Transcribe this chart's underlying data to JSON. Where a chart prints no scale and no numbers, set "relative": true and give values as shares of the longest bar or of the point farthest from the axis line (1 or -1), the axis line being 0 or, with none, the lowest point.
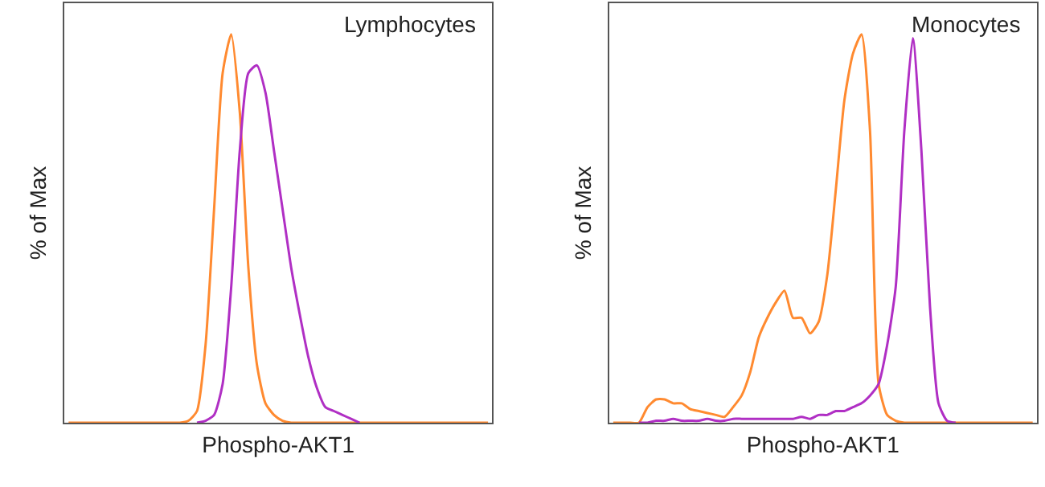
{
  "chart_data": [
    {
      "type": "line",
      "title": "Lymphocytes",
      "ylabel": "% of Max",
      "xlabel": "Phospho-AKT1",
      "relative": true,
      "tick_labels": false,
      "marker": "none",
      "line_style": "solid",
      "categories": [
        null,
        null,
        null,
        null,
        null,
        null,
        null,
        null,
        null,
        null,
        null,
        null,
        null,
        null,
        null,
        null,
        null,
        null,
        null,
        null,
        null,
        null,
        null,
        null,
        null,
        null,
        null,
        null,
        null,
        null,
        null,
        null,
        null,
        null,
        null,
        null,
        null,
        null,
        null,
        null,
        null,
        null,
        null,
        null,
        null,
        null,
        null,
        null,
        null,
        null
      ],
      "series": [
        {
          "color": "#ff8a30",
          "values": [
            0,
            0,
            0,
            0,
            0,
            0,
            0,
            0,
            0,
            0,
            0,
            0,
            0,
            0,
            0.005,
            0.03,
            0.2,
            0.55,
            0.9,
            1.0,
            0.8,
            0.4,
            0.15,
            0.05,
            0.02,
            0.005,
            0,
            0,
            0,
            0,
            0,
            0,
            0,
            0,
            0,
            0,
            0,
            0,
            0,
            0,
            0,
            0,
            0,
            0,
            0,
            0,
            0,
            0,
            0,
            0
          ]
        },
        {
          "color": "#b02fc4",
          "values": [
            null,
            null,
            null,
            null,
            null,
            null,
            null,
            null,
            null,
            null,
            null,
            null,
            null,
            null,
            null,
            0,
            0.005,
            0.02,
            0.1,
            0.35,
            0.7,
            0.9,
            0.92,
            0.85,
            0.7,
            0.55,
            0.4,
            0.28,
            0.17,
            0.09,
            0.04,
            0.03,
            0.02,
            0.01,
            0,
            null,
            null,
            null,
            null,
            null,
            null,
            null,
            null,
            null,
            null,
            null,
            null,
            null,
            null,
            null
          ]
        }
      ]
    },
    {
      "type": "line",
      "title": "Monocytes",
      "ylabel": "% of Max",
      "xlabel": "Phospho-AKT1",
      "relative": true,
      "tick_labels": false,
      "marker": "none",
      "line_style": "solid",
      "categories": [
        null,
        null,
        null,
        null,
        null,
        null,
        null,
        null,
        null,
        null,
        null,
        null,
        null,
        null,
        null,
        null,
        null,
        null,
        null,
        null,
        null,
        null,
        null,
        null,
        null,
        null,
        null,
        null,
        null,
        null,
        null,
        null,
        null,
        null,
        null,
        null,
        null,
        null,
        null,
        null,
        null,
        null,
        null,
        null,
        null,
        null,
        null,
        null,
        null,
        null
      ],
      "series": [
        {
          "color": "#ff8a30",
          "values": [
            0,
            0,
            0,
            0,
            0.04,
            0.06,
            0.06,
            0.05,
            0.05,
            0.035,
            0.03,
            0.025,
            0.02,
            0.015,
            0.04,
            0.07,
            0.13,
            0.22,
            0.27,
            0.31,
            0.34,
            0.27,
            0.27,
            0.23,
            0.26,
            0.38,
            0.6,
            0.83,
            0.95,
            1.0,
            0.75,
            0.1,
            0.02,
            0.005,
            0,
            0,
            0,
            0,
            0,
            0,
            0,
            0,
            0,
            0,
            0,
            0,
            0,
            0,
            0,
            0
          ]
        },
        {
          "color": "#b02fc4",
          "values": [
            null,
            null,
            null,
            0,
            0,
            0.005,
            0.005,
            0.01,
            0.005,
            0.005,
            0.005,
            0.01,
            0.005,
            0.005,
            0.01,
            0.01,
            0.01,
            0.01,
            0.01,
            0.01,
            0.01,
            0.01,
            0.015,
            0.01,
            0.02,
            0.02,
            0.03,
            0.03,
            0.04,
            0.05,
            0.07,
            0.1,
            0.2,
            0.35,
            0.75,
            0.99,
            0.7,
            0.3,
            0.05,
            0.005,
            0,
            null,
            null,
            null,
            null,
            null,
            null,
            null,
            null,
            null
          ]
        }
      ]
    }
  ]
}
